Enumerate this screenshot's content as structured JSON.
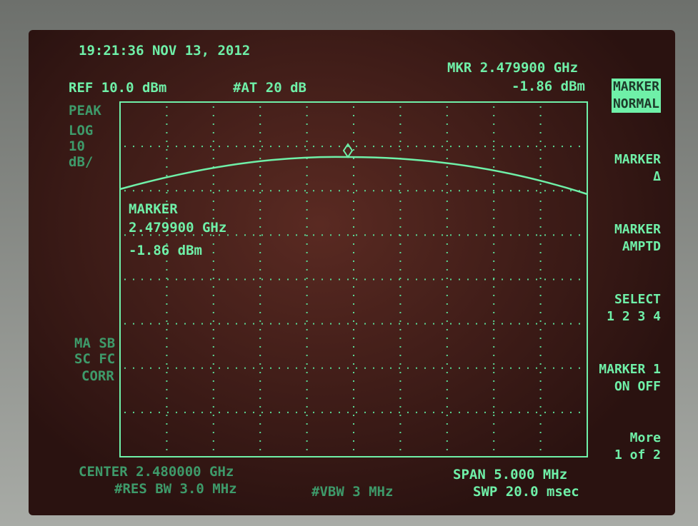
{
  "header": {
    "timestamp": "19:21:36 NOV 13, 2012",
    "ref_level": "REF 10.0 dBm",
    "attenuation": "#AT 20 dB",
    "marker_freq": "MKR 2.479900 GHz",
    "marker_amp": "-1.86 dBm"
  },
  "scale": [
    "PEAK",
    "LOG",
    "10",
    "dB/"
  ],
  "marker_readout": [
    "MARKER",
    "2.479900 GHz",
    "-1.86 dBm"
  ],
  "status": [
    "MA SB",
    "SC FC",
    "CORR"
  ],
  "footer": {
    "center": "CENTER 2.480000 GHz",
    "span": "SPAN 5.000 MHz",
    "rbw": "#RES BW 3.0 MHz",
    "vbw": "#VBW 3 MHz",
    "sweep": "SWP 20.0 msec"
  },
  "softkeys": [
    {
      "lines": [
        "MARKER",
        "NORMAL"
      ]
    },
    {
      "lines": [
        "MARKER",
        "Δ"
      ]
    },
    {
      "lines": [
        "MARKER",
        "AMPTD"
      ]
    },
    {
      "lines": [
        "SELECT",
        "1 2 3 4"
      ]
    },
    {
      "lines": [
        "MARKER 1",
        "ON OFF"
      ]
    },
    {
      "lines": [
        "More",
        "1 of 2"
      ]
    }
  ]
}
